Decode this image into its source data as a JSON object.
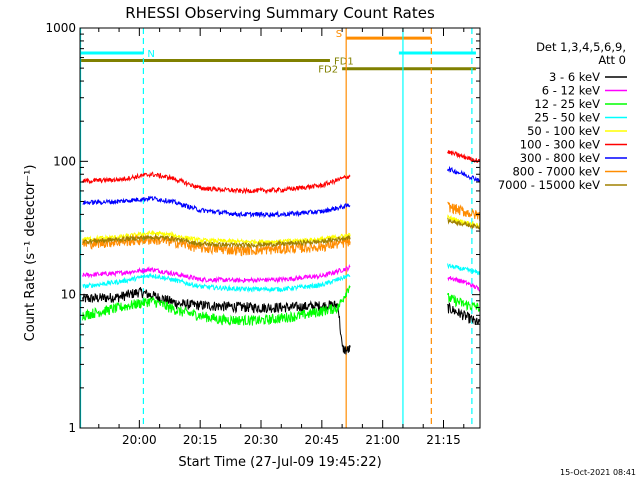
{
  "chart_data": {
    "type": "line",
    "title": "RHESSI Observing Summary Count Rates",
    "xlabel": "Start Time (27-Jul-09 19:45:22)",
    "ylabel": "Count Rate (s⁻¹ detector⁻¹)",
    "y_scale": "log",
    "ylim": [
      1,
      1000
    ],
    "xlim": [
      "19:45:22",
      "21:24"
    ],
    "x_ticks": [
      "20:00",
      "20:15",
      "20:30",
      "20:45",
      "21:00",
      "21:15"
    ],
    "y_ticks": [
      "1",
      "10",
      "100",
      "1000"
    ],
    "legend": {
      "title": "Det 1,3,4,5,6,9,",
      "subtitle": "Att 0",
      "placement": "right"
    },
    "series": [
      {
        "name": "3 - 6 keV",
        "color": "#000000",
        "points": [
          [
            "19:46",
            9.3
          ],
          [
            "19:55",
            9.6
          ],
          [
            "20:00",
            10.5
          ],
          [
            "20:05",
            9.5
          ],
          [
            "20:10",
            8.5
          ],
          [
            "20:20",
            8.2
          ],
          [
            "20:30",
            8.0
          ],
          [
            "20:40",
            8.1
          ],
          [
            "20:49",
            8.4
          ],
          [
            "20:50",
            4.0
          ],
          [
            "20:51",
            3.8
          ],
          [
            "21:16",
            8.0
          ],
          [
            "21:20",
            7.0
          ],
          [
            "21:24",
            6.0
          ]
        ]
      },
      {
        "name": "6 - 12 keV",
        "color": "#ff00ff",
        "points": [
          [
            "19:46",
            14.0
          ],
          [
            "19:55",
            14.5
          ],
          [
            "20:03",
            15.5
          ],
          [
            "20:08",
            14.5
          ],
          [
            "20:15",
            13.0
          ],
          [
            "20:25",
            12.8
          ],
          [
            "20:35",
            13.0
          ],
          [
            "20:45",
            13.8
          ],
          [
            "20:52",
            16.0
          ],
          [
            "21:16",
            13.5
          ],
          [
            "21:20",
            12.5
          ],
          [
            "21:24",
            11.0
          ]
        ]
      },
      {
        "name": "12 - 25 keV",
        "color": "#00ff00",
        "points": [
          [
            "19:46",
            7.0
          ],
          [
            "19:55",
            8.0
          ],
          [
            "20:03",
            9.0
          ],
          [
            "20:10",
            7.5
          ],
          [
            "20:20",
            6.5
          ],
          [
            "20:30",
            6.4
          ],
          [
            "20:40",
            7.0
          ],
          [
            "20:49",
            8.0
          ],
          [
            "20:52",
            12.0
          ],
          [
            "21:16",
            9.5
          ],
          [
            "21:20",
            8.5
          ],
          [
            "21:24",
            8.0
          ]
        ]
      },
      {
        "name": "25 - 50 keV",
        "color": "#00ffff",
        "points": [
          [
            "19:46",
            11.5
          ],
          [
            "19:55",
            12.5
          ],
          [
            "20:03",
            14.0
          ],
          [
            "20:08",
            13.0
          ],
          [
            "20:15",
            11.5
          ],
          [
            "20:25",
            11.0
          ],
          [
            "20:35",
            11.0
          ],
          [
            "20:45",
            11.8
          ],
          [
            "20:52",
            14.0
          ],
          [
            "21:16",
            16.5
          ],
          [
            "21:20",
            15.5
          ],
          [
            "21:24",
            14.5
          ]
        ]
      },
      {
        "name": "50 - 100 keV",
        "color": "#ffff00",
        "points": [
          [
            "19:46",
            26.0
          ],
          [
            "19:55",
            27.0
          ],
          [
            "20:03",
            29.0
          ],
          [
            "20:08",
            28.0
          ],
          [
            "20:15",
            25.5
          ],
          [
            "20:25",
            25.0
          ],
          [
            "20:35",
            25.0
          ],
          [
            "20:45",
            26.0
          ],
          [
            "20:52",
            28.0
          ],
          [
            "21:16",
            38.0
          ],
          [
            "21:20",
            35.0
          ],
          [
            "21:24",
            33.0
          ]
        ]
      },
      {
        "name": "100 - 300 keV",
        "color": "#ff0000",
        "points": [
          [
            "19:46",
            71.0
          ],
          [
            "19:55",
            73.0
          ],
          [
            "20:03",
            80.0
          ],
          [
            "20:08",
            75.0
          ],
          [
            "20:15",
            63.0
          ],
          [
            "20:25",
            60.0
          ],
          [
            "20:35",
            61.0
          ],
          [
            "20:45",
            66.0
          ],
          [
            "20:52",
            78.0
          ],
          [
            "21:16",
            118.0
          ],
          [
            "21:20",
            108.0
          ],
          [
            "21:24",
            100.0
          ]
        ]
      },
      {
        "name": "300 - 800 keV",
        "color": "#0000ff",
        "points": [
          [
            "19:46",
            49.0
          ],
          [
            "19:55",
            50.0
          ],
          [
            "20:03",
            53.0
          ],
          [
            "20:08",
            50.0
          ],
          [
            "20:15",
            43.0
          ],
          [
            "20:25",
            40.0
          ],
          [
            "20:35",
            40.0
          ],
          [
            "20:45",
            42.0
          ],
          [
            "20:52",
            47.0
          ],
          [
            "21:16",
            88.0
          ],
          [
            "21:20",
            80.0
          ],
          [
            "21:24",
            72.0
          ]
        ]
      },
      {
        "name": "800 - 7000 keV",
        "color": "#ff8c00",
        "points": [
          [
            "19:46",
            24.0
          ],
          [
            "19:55",
            25.0
          ],
          [
            "20:03",
            26.0
          ],
          [
            "20:08",
            25.0
          ],
          [
            "20:15",
            22.5
          ],
          [
            "20:25",
            21.5
          ],
          [
            "20:35",
            22.0
          ],
          [
            "20:45",
            23.0
          ],
          [
            "20:52",
            25.0
          ],
          [
            "21:16",
            46.0
          ],
          [
            "21:20",
            42.0
          ],
          [
            "21:24",
            39.0
          ]
        ]
      },
      {
        "name": "7000 - 15000 keV",
        "color": "#a08000",
        "points": [
          [
            "19:46",
            25.0
          ],
          [
            "19:55",
            26.0
          ],
          [
            "20:03",
            27.0
          ],
          [
            "20:08",
            26.5
          ],
          [
            "20:15",
            24.0
          ],
          [
            "20:25",
            23.5
          ],
          [
            "20:35",
            24.0
          ],
          [
            "20:45",
            25.0
          ],
          [
            "20:52",
            27.0
          ],
          [
            "21:16",
            36.0
          ],
          [
            "21:20",
            34.0
          ],
          [
            "21:24",
            32.0
          ]
        ]
      }
    ],
    "flags": [
      {
        "label": "N",
        "color": "#00ffff",
        "y": 650,
        "segments": [
          [
            "19:45:22",
            "20:01"
          ],
          [
            "21:04",
            "21:23"
          ]
        ]
      },
      {
        "label": "S",
        "color": "#ff8c00",
        "y": 840,
        "segments": [
          [
            "20:51",
            "21:12"
          ]
        ]
      },
      {
        "label": "FD1",
        "color": "#808000",
        "y": 570,
        "segments": [
          [
            "19:45:22",
            "20:47"
          ]
        ]
      },
      {
        "label": "FD2",
        "color": "#808000",
        "y": 495,
        "segments": [
          [
            "20:50",
            "21:23"
          ]
        ]
      }
    ],
    "vlines": [
      {
        "time": "19:45:30",
        "color": "#00ffff",
        "style": "solid"
      },
      {
        "time": "20:01",
        "color": "#00ffff",
        "style": "dashed"
      },
      {
        "time": "20:51",
        "color": "#ff8c00",
        "style": "solid"
      },
      {
        "time": "21:05",
        "color": "#00ffff",
        "style": "solid"
      },
      {
        "time": "21:12",
        "color": "#ff8c00",
        "style": "dashed"
      },
      {
        "time": "21:22",
        "color": "#00ffff",
        "style": "dashed"
      }
    ],
    "gap": [
      "20:52",
      "21:16"
    ]
  },
  "footer_timestamp": "15-Oct-2021 08:41"
}
